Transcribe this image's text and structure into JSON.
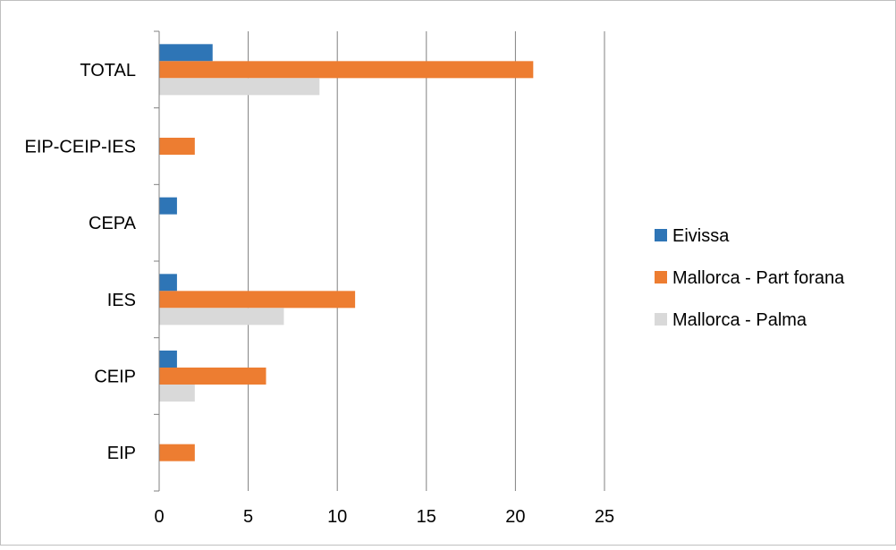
{
  "chart_data": {
    "type": "bar",
    "orientation": "horizontal",
    "categories": [
      "EIP",
      "CEIP",
      "IES",
      "CEPA",
      "EIP-CEIP-IES",
      "TOTAL"
    ],
    "series": [
      {
        "name": "Eivissa",
        "color": "#2e75b6",
        "values": [
          0,
          1,
          1,
          1,
          0,
          3
        ]
      },
      {
        "name": "Mallorca - Part forana",
        "color": "#ed7d31",
        "values": [
          2,
          6,
          11,
          0,
          2,
          21
        ]
      },
      {
        "name": "Mallorca - Palma",
        "color": "#d9d9d9",
        "values": [
          0,
          2,
          7,
          0,
          0,
          9
        ]
      }
    ],
    "xlim": [
      0,
      25
    ],
    "xticks": [
      "0",
      "5",
      "10",
      "15",
      "20",
      "25"
    ],
    "grid": "vertical",
    "legend": "right"
  }
}
